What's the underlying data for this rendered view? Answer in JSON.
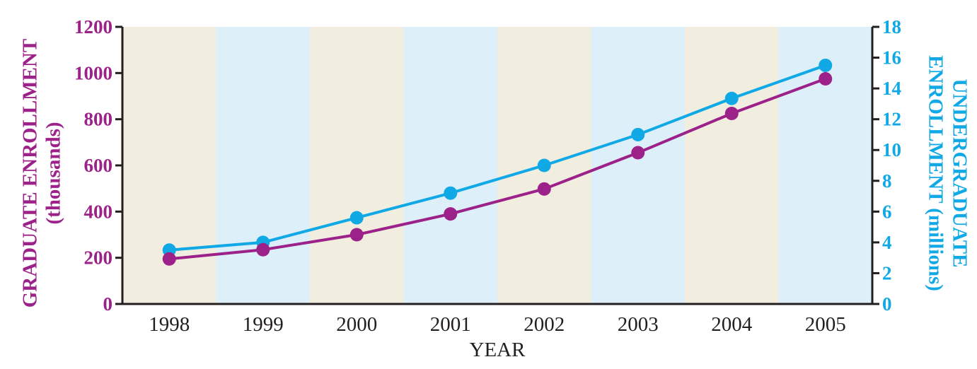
{
  "colors": {
    "graduate": "#9c2189",
    "undergraduate": "#11a8e6",
    "band_tan": "#f1eee0",
    "band_blue": "#ddf0fa",
    "axis": "#231f20",
    "text": "#231f20"
  },
  "chart_data": {
    "type": "line",
    "title": "",
    "xlabel": "YEAR",
    "ylabel_left": [
      "GRADUATE ENROLLMENT",
      "(thousands)"
    ],
    "ylabel_right": [
      "UNDERGRADUATE",
      "ENROLLMENT (millions)"
    ],
    "categories": [
      "1998",
      "1999",
      "2000",
      "2001",
      "2002",
      "2003",
      "2004",
      "2005"
    ],
    "ylim_left": [
      0,
      1200
    ],
    "yticks_left": [
      0,
      200,
      400,
      600,
      800,
      1000,
      1200
    ],
    "ylim_right": [
      0,
      18
    ],
    "yticks_right": [
      0,
      2,
      4,
      6,
      8,
      10,
      12,
      14,
      16,
      18
    ],
    "background_bands": [
      "tan",
      "blue",
      "tan",
      "blue",
      "tan",
      "blue",
      "tan",
      "blue"
    ],
    "legend": "none",
    "grid": false,
    "series": [
      {
        "axis": "left",
        "color_key": "graduate",
        "values": [
          195,
          235,
          300,
          390,
          498,
          655,
          825,
          975
        ]
      },
      {
        "axis": "right",
        "color_key": "undergraduate",
        "values": [
          3.5,
          4.0,
          5.6,
          7.2,
          9.0,
          11.0,
          13.35,
          15.5
        ]
      }
    ]
  }
}
